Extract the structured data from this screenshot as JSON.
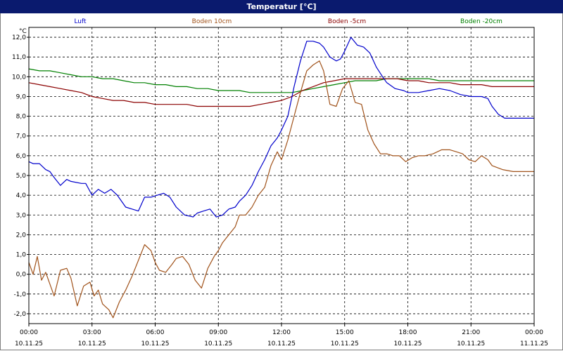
{
  "window": {
    "title": "Temperatur [°C]"
  },
  "chart_data": {
    "type": "line",
    "title": "Temperatur [°C]",
    "ylabel": "°C",
    "xlabel": "",
    "x_unit": "hours since 10.11.25 00:00",
    "xlim": [
      0,
      24
    ],
    "ylim": [
      -2.5,
      12.5
    ],
    "yticks": [
      12.0,
      11.0,
      10.0,
      9.0,
      8.0,
      7.0,
      6.0,
      5.0,
      4.0,
      3.0,
      2.0,
      1.0,
      0.0,
      -1.0,
      -2.0
    ],
    "ytick_labels": [
      "12,0",
      "11,0",
      "10,0",
      "9,0",
      "8,0",
      "7,0",
      "6,0",
      "5,0",
      "4,0",
      "3,0",
      "2,0",
      "1,0",
      "0,0",
      "-1,0",
      "-2,0"
    ],
    "xticks": [
      {
        "time": "00:00",
        "date": "10.11.25"
      },
      {
        "time": "03:00",
        "date": "10.11.25"
      },
      {
        "time": "06:00",
        "date": "10.11.25"
      },
      {
        "time": "09:00",
        "date": "10.11.25"
      },
      {
        "time": "12:00",
        "date": "10.11.25"
      },
      {
        "time": "15:00",
        "date": "10.11.25"
      },
      {
        "time": "18:00",
        "date": "10.11.25"
      },
      {
        "time": "21:00",
        "date": "10.11.25"
      },
      {
        "time": "00:00",
        "date": "11.11.25"
      }
    ],
    "grid": true,
    "legend_position": "top",
    "series": [
      {
        "name": "Luft",
        "color": "#0000cc",
        "x": [
          0,
          0.2,
          0.5,
          0.8,
          1.0,
          1.2,
          1.5,
          1.8,
          2.0,
          2.5,
          2.7,
          3.0,
          3.3,
          3.6,
          3.9,
          4.2,
          4.6,
          4.9,
          5.2,
          5.5,
          5.8,
          6.1,
          6.4,
          6.7,
          7.0,
          7.4,
          7.8,
          8.0,
          8.3,
          8.6,
          8.9,
          9.2,
          9.5,
          9.8,
          10.0,
          10.3,
          10.6,
          10.9,
          11.2,
          11.5,
          11.8,
          12.0,
          12.3,
          12.6,
          12.9,
          13.2,
          13.5,
          13.8,
          14.0,
          14.3,
          14.6,
          14.8,
          15.0,
          15.3,
          15.6,
          15.9,
          16.2,
          16.5,
          16.8,
          17.0,
          17.4,
          17.8,
          18.0,
          18.5,
          19.0,
          19.5,
          20.0,
          20.5,
          21.0,
          21.5,
          21.8,
          22.0,
          22.3,
          22.6,
          23.0,
          23.5,
          24.0
        ],
        "y": [
          5.7,
          5.6,
          5.6,
          5.3,
          5.2,
          4.9,
          4.5,
          4.8,
          4.7,
          4.6,
          4.6,
          4.0,
          4.3,
          4.1,
          4.3,
          4.0,
          3.4,
          3.3,
          3.2,
          3.9,
          3.9,
          4.0,
          4.1,
          3.9,
          3.4,
          3.0,
          2.9,
          3.1,
          3.2,
          3.3,
          2.9,
          3.0,
          3.3,
          3.4,
          3.7,
          4.0,
          4.5,
          5.2,
          5.8,
          6.5,
          6.9,
          7.3,
          8.0,
          9.5,
          10.8,
          11.8,
          11.8,
          11.7,
          11.5,
          11.0,
          10.8,
          10.9,
          11.3,
          12.0,
          11.6,
          11.5,
          11.2,
          10.5,
          10.0,
          9.7,
          9.4,
          9.3,
          9.2,
          9.2,
          9.3,
          9.4,
          9.3,
          9.1,
          9.0,
          9.0,
          8.9,
          8.5,
          8.1,
          7.9,
          7.9,
          7.9,
          7.9
        ]
      },
      {
        "name": "Boden 10cm",
        "color": "#a0521a",
        "x": [
          0,
          0.2,
          0.4,
          0.6,
          0.8,
          1.0,
          1.2,
          1.5,
          1.8,
          2.0,
          2.3,
          2.6,
          2.9,
          3.1,
          3.3,
          3.5,
          3.8,
          4.0,
          4.3,
          4.6,
          4.9,
          5.2,
          5.5,
          5.8,
          6.0,
          6.2,
          6.5,
          6.8,
          7.0,
          7.3,
          7.6,
          7.9,
          8.2,
          8.5,
          8.8,
          9.0,
          9.2,
          9.5,
          9.8,
          10.0,
          10.3,
          10.6,
          10.9,
          11.2,
          11.5,
          11.8,
          12.0,
          12.3,
          12.6,
          12.9,
          13.2,
          13.5,
          13.8,
          14.0,
          14.3,
          14.6,
          14.9,
          15.2,
          15.5,
          15.8,
          16.1,
          16.4,
          16.7,
          17.0,
          17.3,
          17.6,
          17.9,
          18.2,
          18.5,
          18.8,
          19.2,
          19.6,
          20.0,
          20.3,
          20.6,
          20.9,
          21.2,
          21.5,
          21.8,
          22.0,
          22.5,
          23.0,
          23.5,
          24.0
        ],
        "y": [
          0.6,
          0.0,
          0.9,
          -0.3,
          0.1,
          -0.5,
          -1.1,
          0.2,
          0.3,
          -0.2,
          -1.6,
          -0.6,
          -0.4,
          -1.1,
          -0.8,
          -1.5,
          -1.8,
          -2.2,
          -1.4,
          -0.8,
          -0.1,
          0.7,
          1.5,
          1.2,
          0.6,
          0.2,
          0.1,
          0.5,
          0.8,
          0.9,
          0.5,
          -0.3,
          -0.7,
          0.3,
          0.9,
          1.2,
          1.6,
          2.0,
          2.4,
          3.0,
          3.0,
          3.4,
          4.0,
          4.4,
          5.5,
          6.2,
          5.8,
          6.8,
          8.0,
          9.2,
          10.3,
          10.6,
          10.8,
          10.3,
          8.6,
          8.5,
          9.4,
          9.8,
          8.7,
          8.6,
          7.3,
          6.6,
          6.1,
          6.1,
          6.0,
          6.0,
          5.7,
          5.9,
          6.0,
          6.0,
          6.1,
          6.3,
          6.3,
          6.2,
          6.1,
          5.8,
          5.7,
          6.0,
          5.8,
          5.5,
          5.3,
          5.2,
          5.2,
          5.2
        ]
      },
      {
        "name": "Boden -5cm",
        "color": "#8b0000",
        "x": [
          0,
          0.5,
          1.0,
          1.5,
          2.0,
          2.5,
          3.0,
          3.5,
          4.0,
          4.5,
          5.0,
          5.5,
          6.0,
          6.5,
          7.0,
          7.5,
          8.0,
          8.5,
          9.0,
          9.5,
          10.0,
          10.5,
          11.0,
          11.5,
          12.0,
          12.5,
          13.0,
          13.5,
          14.0,
          14.5,
          15.0,
          15.5,
          16.0,
          16.5,
          17.0,
          17.5,
          18.0,
          18.5,
          19.0,
          19.5,
          20.0,
          20.5,
          21.0,
          21.5,
          22.0,
          22.5,
          23.0,
          23.5,
          24.0
        ],
        "y": [
          9.7,
          9.6,
          9.5,
          9.4,
          9.3,
          9.2,
          9.0,
          8.9,
          8.8,
          8.8,
          8.7,
          8.7,
          8.6,
          8.6,
          8.6,
          8.6,
          8.5,
          8.5,
          8.5,
          8.5,
          8.5,
          8.5,
          8.6,
          8.7,
          8.8,
          9.0,
          9.3,
          9.5,
          9.7,
          9.8,
          9.9,
          9.9,
          9.9,
          9.9,
          9.9,
          9.9,
          9.8,
          9.8,
          9.7,
          9.7,
          9.7,
          9.6,
          9.6,
          9.6,
          9.5,
          9.5,
          9.5,
          9.5,
          9.5
        ]
      },
      {
        "name": "Boden -20cm",
        "color": "#008000",
        "x": [
          0,
          0.5,
          1.0,
          1.5,
          2.0,
          2.5,
          3.0,
          3.5,
          4.0,
          4.5,
          5.0,
          5.5,
          6.0,
          6.5,
          7.0,
          7.5,
          8.0,
          8.5,
          9.0,
          9.5,
          10.0,
          10.5,
          11.0,
          11.5,
          12.0,
          12.5,
          13.0,
          13.5,
          14.0,
          14.5,
          15.0,
          15.5,
          16.0,
          16.5,
          17.0,
          17.5,
          18.0,
          18.5,
          19.0,
          19.5,
          20.0,
          20.5,
          21.0,
          21.5,
          22.0,
          22.5,
          23.0,
          23.5,
          24.0
        ],
        "y": [
          10.4,
          10.3,
          10.3,
          10.2,
          10.1,
          10.0,
          10.0,
          9.9,
          9.9,
          9.8,
          9.7,
          9.7,
          9.6,
          9.6,
          9.5,
          9.5,
          9.4,
          9.4,
          9.3,
          9.3,
          9.3,
          9.2,
          9.2,
          9.2,
          9.2,
          9.2,
          9.3,
          9.4,
          9.5,
          9.6,
          9.7,
          9.8,
          9.8,
          9.8,
          9.9,
          9.9,
          9.9,
          9.9,
          9.9,
          9.8,
          9.8,
          9.8,
          9.8,
          9.8,
          9.8,
          9.8,
          9.8,
          9.8,
          9.8
        ]
      }
    ]
  }
}
